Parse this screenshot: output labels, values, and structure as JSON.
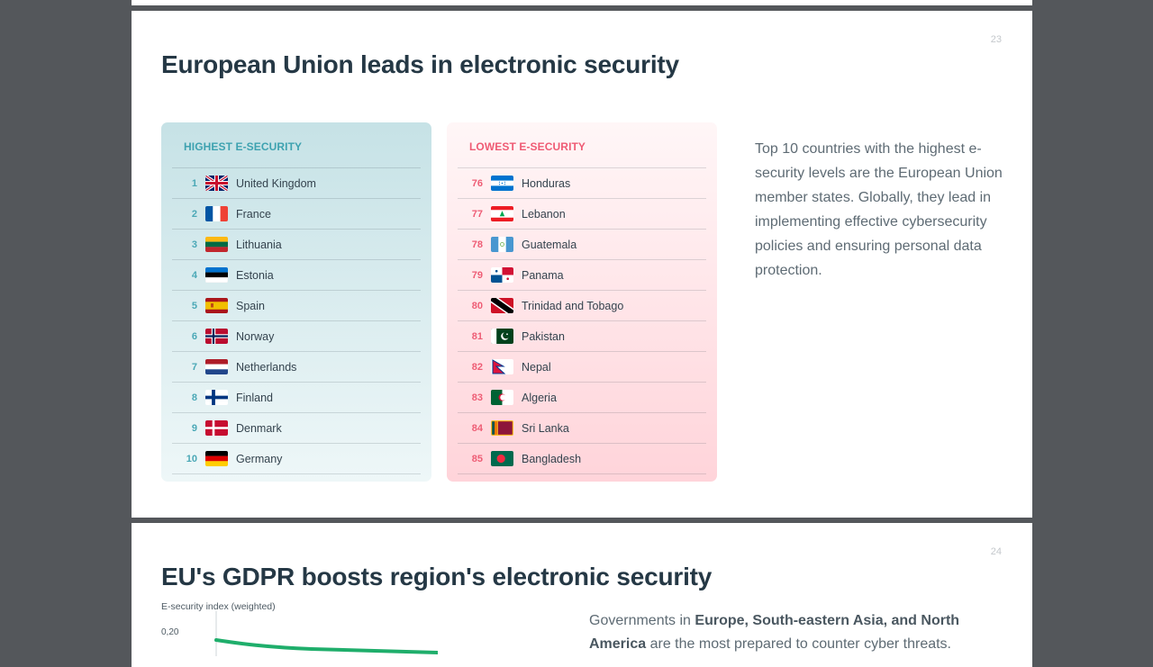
{
  "page23": {
    "page_number": "23",
    "title": "European Union leads in electronic security",
    "highest": {
      "heading": "HIGHEST E-SECURITY",
      "rows": [
        {
          "rank": "1",
          "country": "United Kingdom",
          "flag": "uk-flag-icon"
        },
        {
          "rank": "2",
          "country": "France",
          "flag": "france-flag-icon"
        },
        {
          "rank": "3",
          "country": "Lithuania",
          "flag": "lithuania-flag-icon"
        },
        {
          "rank": "4",
          "country": "Estonia",
          "flag": "estonia-flag-icon"
        },
        {
          "rank": "5",
          "country": "Spain",
          "flag": "spain-flag-icon"
        },
        {
          "rank": "6",
          "country": "Norway",
          "flag": "norway-flag-icon"
        },
        {
          "rank": "7",
          "country": "Netherlands",
          "flag": "netherlands-flag-icon"
        },
        {
          "rank": "8",
          "country": "Finland",
          "flag": "finland-flag-icon"
        },
        {
          "rank": "9",
          "country": "Denmark",
          "flag": "denmark-flag-icon"
        },
        {
          "rank": "10",
          "country": "Germany",
          "flag": "germany-flag-icon"
        }
      ]
    },
    "lowest": {
      "heading": "LOWEST E-SECURITY",
      "rows": [
        {
          "rank": "76",
          "country": "Honduras",
          "flag": "honduras-flag-icon"
        },
        {
          "rank": "77",
          "country": "Lebanon",
          "flag": "lebanon-flag-icon"
        },
        {
          "rank": "78",
          "country": "Guatemala",
          "flag": "guatemala-flag-icon"
        },
        {
          "rank": "79",
          "country": "Panama",
          "flag": "panama-flag-icon"
        },
        {
          "rank": "80",
          "country": "Trinidad and Tobago",
          "flag": "trinidad-and-tobago-flag-icon"
        },
        {
          "rank": "81",
          "country": "Pakistan",
          "flag": "pakistan-flag-icon"
        },
        {
          "rank": "82",
          "country": "Nepal",
          "flag": "nepal-flag-icon"
        },
        {
          "rank": "83",
          "country": "Algeria",
          "flag": "algeria-flag-icon"
        },
        {
          "rank": "84",
          "country": "Sri Lanka",
          "flag": "sri-lanka-flag-icon"
        },
        {
          "rank": "85",
          "country": "Bangladesh",
          "flag": "bangladesh-flag-icon"
        }
      ]
    },
    "side_text": "Top 10 countries with the highest e-security levels are the European Union member states. Globally, they lead in implementing effective cybersecurity policies and ensuring personal data protection."
  },
  "page24": {
    "page_number": "24",
    "title": "EU's GDPR boosts region's electronic security",
    "chart_ylabel": "E-security index (weighted)",
    "chart_tick": "0,20",
    "text_intro": "Governments in ",
    "text_bold_1": "Europe, South-eastern Asia, and North",
    "text_bold_2": "America",
    "text_rest": " are the most prepared to counter cyber threats."
  },
  "colors": {
    "accent_teal": "#3ea2b0",
    "accent_red": "#ef5b74",
    "line_green": "#1fae6b",
    "top_bar": "#2aa9b0"
  }
}
